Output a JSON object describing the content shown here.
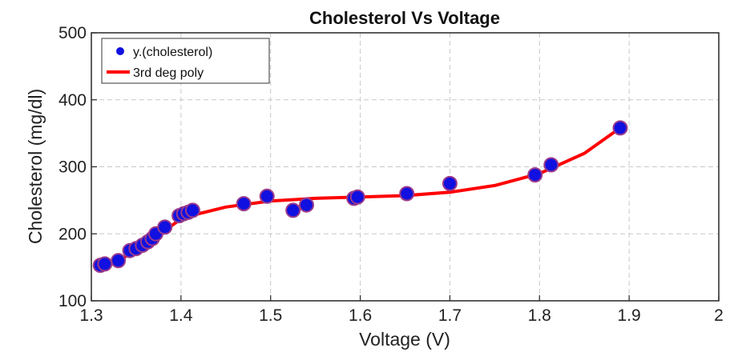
{
  "chart_data": {
    "type": "scatter",
    "title": "Cholesterol Vs Voltage",
    "xlabel": "Voltage (V)",
    "ylabel": "Cholesterol (mg/dl)",
    "xlim": [
      1.3,
      2
    ],
    "ylim": [
      100,
      500
    ],
    "xticks": [
      "1.3",
      "1.4",
      "1.5",
      "1.6",
      "1.7",
      "1.8",
      "1.9",
      "2"
    ],
    "yticks": [
      "100",
      "200",
      "300",
      "400",
      "500"
    ],
    "grid": true,
    "legend_position": "top-left",
    "colors": {
      "points": "#1010e0",
      "point_edge": "#9a3a8a",
      "fit": "#ff0000"
    },
    "series": [
      {
        "name": "y.(cholesterol)",
        "kind": "scatter",
        "x": [
          1.31,
          1.315,
          1.33,
          1.343,
          1.35,
          1.357,
          1.363,
          1.368,
          1.372,
          1.382,
          1.398,
          1.403,
          1.408,
          1.413,
          1.47,
          1.496,
          1.525,
          1.54,
          1.593,
          1.597,
          1.652,
          1.7,
          1.795,
          1.813,
          1.89
        ],
        "y": [
          153,
          155,
          160,
          175,
          178,
          183,
          188,
          193,
          200,
          210,
          227,
          230,
          232,
          235,
          245,
          256,
          235,
          243,
          253,
          255,
          260,
          275,
          288,
          303,
          358
        ]
      },
      {
        "name": "3rd deg poly",
        "kind": "line",
        "x": [
          1.31,
          1.33,
          1.35,
          1.37,
          1.385,
          1.4,
          1.42,
          1.45,
          1.5,
          1.55,
          1.6,
          1.65,
          1.7,
          1.75,
          1.8,
          1.85,
          1.89
        ],
        "y": [
          152,
          160,
          175,
          192,
          208,
          222,
          230,
          240,
          249,
          253,
          255,
          257,
          262,
          272,
          290,
          320,
          358
        ]
      }
    ]
  }
}
